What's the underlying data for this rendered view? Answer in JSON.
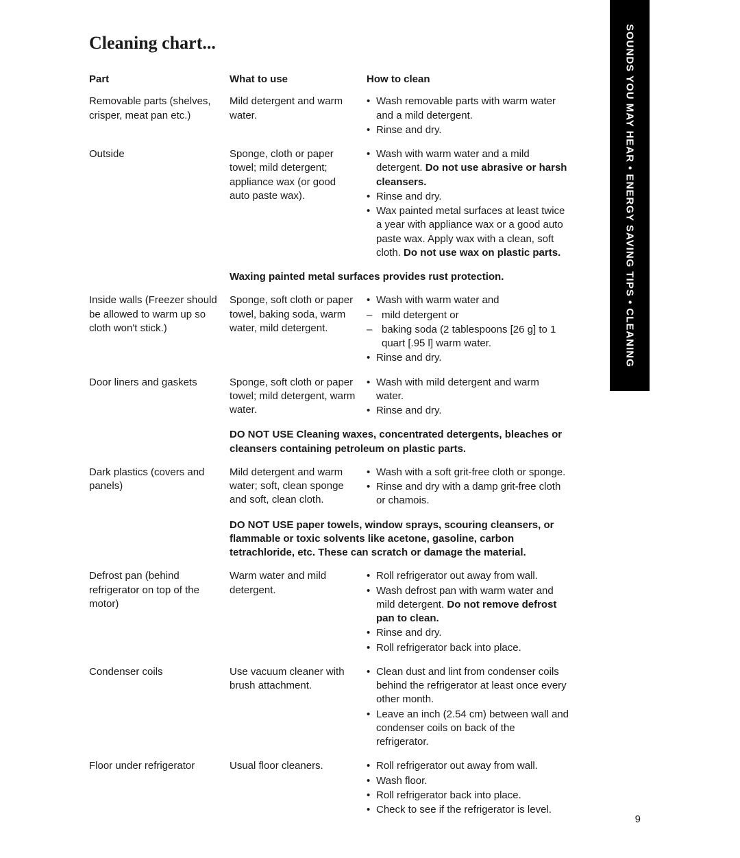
{
  "title": "Cleaning chart...",
  "headers": {
    "part": "Part",
    "what": "What to use",
    "how": "How to clean"
  },
  "rows": {
    "r0": {
      "part": "Removable parts (shelves, crisper, meat pan etc.)",
      "what": "Mild detergent and warm water.",
      "how": [
        {
          "t": "bullet",
          "text": "Wash removable parts with warm water and a mild detergent."
        },
        {
          "t": "bullet",
          "text": "Rinse and dry."
        }
      ]
    },
    "r1": {
      "part": "Outside",
      "what": "Sponge, cloth or paper towel; mild detergent; appliance wax (or good auto paste wax).",
      "how": [
        {
          "t": "bullet",
          "pre": "Wash with warm water and a mild detergent. ",
          "bold": "Do not use abrasive or harsh cleansers."
        },
        {
          "t": "bullet",
          "text": "Rinse and dry."
        },
        {
          "t": "bullet",
          "pre": "Wax painted metal surfaces at least twice a year with appliance wax or a good auto paste wax. Apply wax with a clean, soft cloth. ",
          "bold": "Do not use wax on plastic parts."
        }
      ]
    },
    "r2": {
      "part": "Inside walls (Freezer should be allowed to warm up so cloth won't stick.)",
      "what": "Sponge, soft cloth or paper towel, baking soda, warm water, mild detergent.",
      "how": [
        {
          "t": "bullet",
          "text": "Wash with warm water and"
        },
        {
          "t": "dash",
          "text": "mild detergent or"
        },
        {
          "t": "dash",
          "text": "baking soda (2 tablespoons [26 g] to 1 quart [.95 l] warm water."
        },
        {
          "t": "bullet",
          "text": "Rinse and dry."
        }
      ]
    },
    "r3": {
      "part": "Door liners and gaskets",
      "what": "Sponge, soft cloth or paper towel; mild detergent, warm water.",
      "how": [
        {
          "t": "bullet",
          "text": "Wash with mild detergent and warm water."
        },
        {
          "t": "bullet",
          "text": "Rinse and dry."
        }
      ]
    },
    "r4": {
      "part": "Dark plastics (covers and panels)",
      "what": "Mild detergent and warm water; soft, clean sponge and soft, clean cloth.",
      "how": [
        {
          "t": "bullet",
          "text": "Wash with a soft grit-free cloth or sponge."
        },
        {
          "t": "bullet",
          "text": "Rinse and dry with a damp grit-free cloth or chamois."
        }
      ]
    },
    "r5": {
      "part": "Defrost pan (behind refrigerator on top of the motor)",
      "what": "Warm water and mild detergent.",
      "how": [
        {
          "t": "bullet",
          "text": "Roll refrigerator out away from wall."
        },
        {
          "t": "bullet",
          "pre": "Wash defrost pan with warm water and mild detergent. ",
          "bold": "Do not remove defrost pan to clean."
        },
        {
          "t": "bullet",
          "text": "Rinse and dry."
        },
        {
          "t": "bullet",
          "text": "Roll refrigerator back into place."
        }
      ]
    },
    "r6": {
      "part": "Condenser coils",
      "what": "Use vacuum cleaner with brush attachment.",
      "how": [
        {
          "t": "bullet",
          "text": "Clean dust and lint from condenser coils behind the refrigerator at least once every other month."
        },
        {
          "t": "bullet",
          "text": "Leave an inch (2.54 cm) between wall and condenser coils on back of the refrigerator."
        }
      ]
    },
    "r7": {
      "part": "Floor under refrigerator",
      "what": "Usual floor cleaners.",
      "how": [
        {
          "t": "bullet",
          "text": "Roll refrigerator out away from wall."
        },
        {
          "t": "bullet",
          "text": "Wash floor."
        },
        {
          "t": "bullet",
          "text": "Roll refrigerator back into place."
        },
        {
          "t": "bullet",
          "text": "Check to see if the refrigerator is level."
        }
      ]
    }
  },
  "notes": {
    "n1": "Waxing painted metal surfaces provides rust protection.",
    "n2": "DO NOT USE Cleaning waxes, concentrated detergents, bleaches or cleansers containing petroleum on plastic parts.",
    "n3": "DO NOT USE paper towels, window sprays, scouring cleansers, or flammable or toxic solvents like acetone, gasoline, carbon tetrachloride, etc. These can scratch or damage the material."
  },
  "sidetab": "SOUNDS YOU MAY HEAR • ENERGY SAVING TIPS • CLEANING",
  "page_number": "9"
}
